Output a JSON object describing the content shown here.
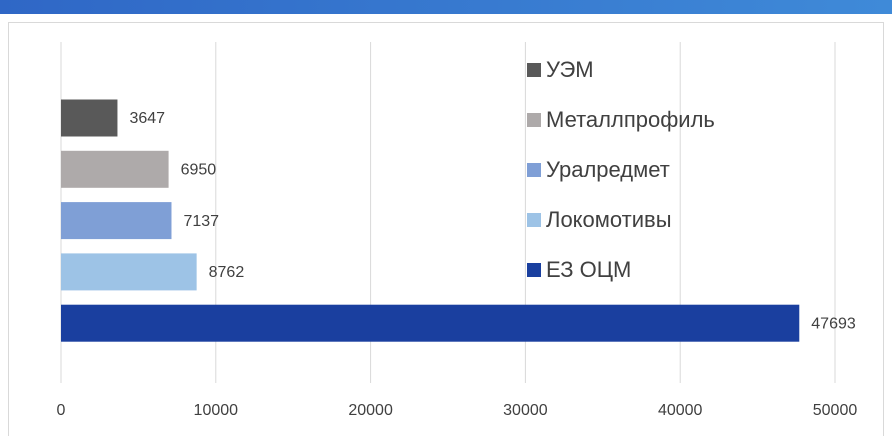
{
  "chart_data": {
    "type": "bar",
    "orientation": "horizontal",
    "categories": [
      "УЭМ",
      "Металлпрофиль",
      "Уралредмет",
      "Локомотивы",
      "ЕЗ ОЦМ"
    ],
    "values": [
      3647,
      6950,
      7137,
      8762,
      47693
    ],
    "colors": [
      "#595959",
      "#aeaaaa",
      "#7f9fd6",
      "#9dc3e6",
      "#1a3f9f"
    ],
    "xlim": [
      0,
      50000
    ],
    "xticks": [
      0,
      10000,
      20000,
      30000,
      40000,
      50000
    ],
    "grid": true
  }
}
